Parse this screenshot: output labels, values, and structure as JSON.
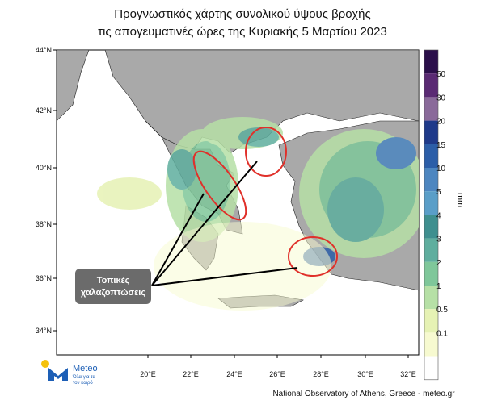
{
  "header": {
    "title_line1": "Προγνωστικός χάρτης συνολικού ύψους βροχής",
    "title_line2": "τις απογευματινές ώρες της Κυριακής 5 Μαρτίου 2023"
  },
  "map": {
    "lat_labels": [
      "44°N",
      "42°N",
      "40°N",
      "38°N",
      "36°N",
      "34°N"
    ],
    "lon_labels": [
      "20°E",
      "22°E",
      "24°E",
      "26°E",
      "28°E",
      "30°E",
      "32°E"
    ],
    "annotation": [
      "Τοπικές",
      "χαλαζοπτώσεις"
    ]
  },
  "colorbar": {
    "unit": "mm",
    "labels": [
      "50",
      "30",
      "20",
      "15",
      "10",
      "5",
      "4",
      "3",
      "2",
      "1",
      "0.5",
      "0.1"
    ],
    "colors": [
      "#2b0f4a",
      "#5a2a73",
      "#8a6a9a",
      "#1f3a8a",
      "#2c5ea8",
      "#4d86c0",
      "#5a9ec8",
      "#3f8f8f",
      "#5fae9e",
      "#7fc79a",
      "#b6e0a6",
      "#e6f2b4",
      "#f7fad0",
      "#ffffff"
    ]
  },
  "logo": {
    "name": "Meteo",
    "tagline_line1": "Όλα για τα",
    "tagline_line2": "τον καιρό"
  },
  "footer": {
    "credit": "National Observatory of Athens, Greece - meteo.gr"
  }
}
